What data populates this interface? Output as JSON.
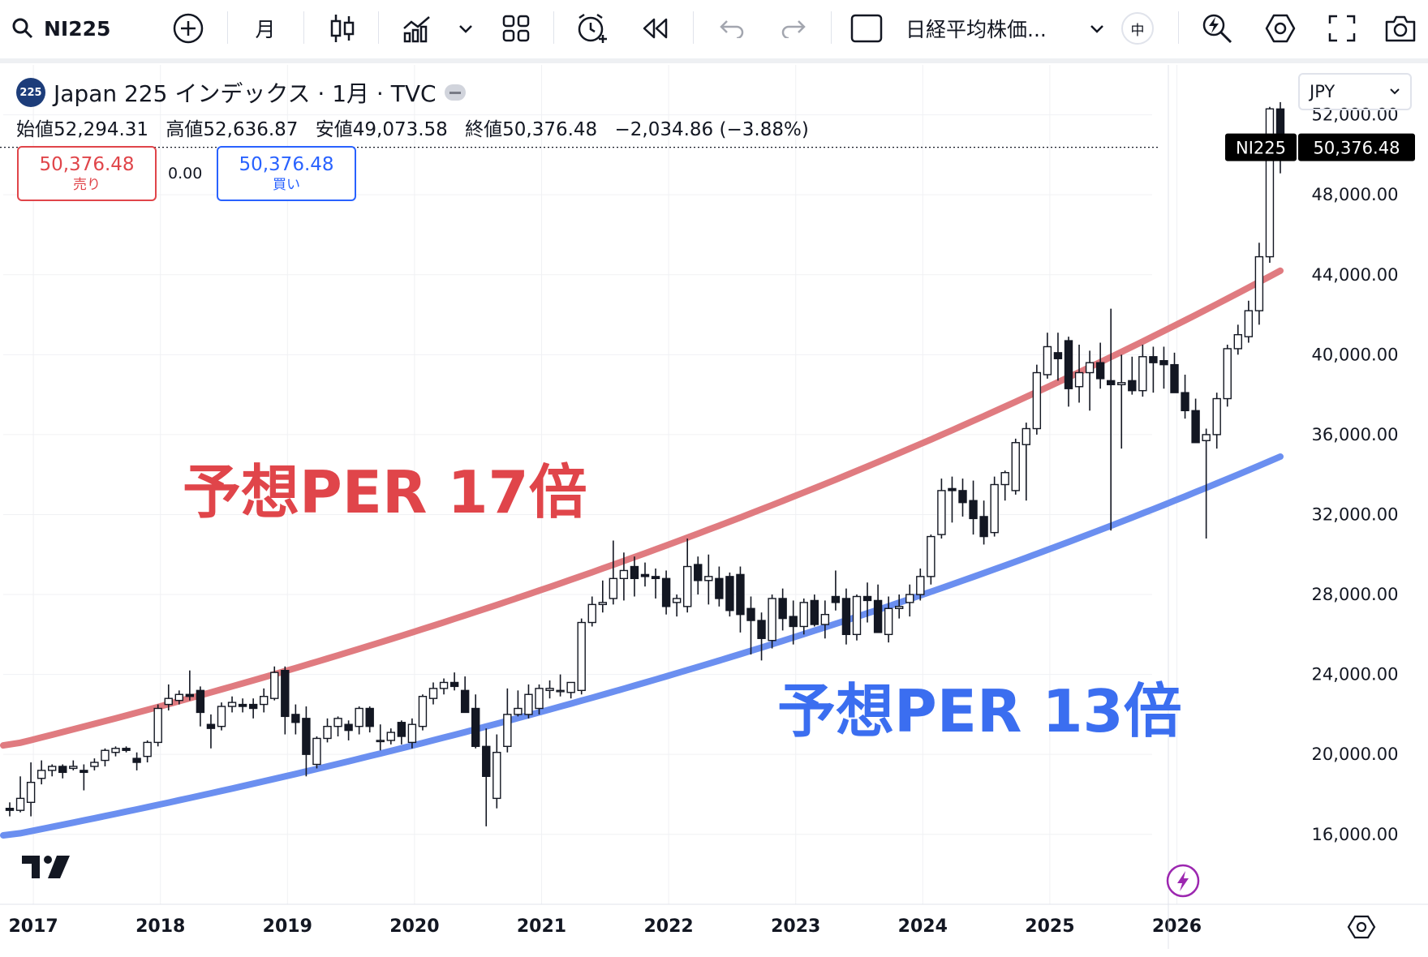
{
  "toolbar": {
    "symbol": "NI225",
    "interval": "月",
    "template": "日経平均株価...",
    "lang_badge": "中"
  },
  "legend": {
    "symbol_badge": "225",
    "title": "Japan 225 インデックス · 1月 · TVC",
    "open_label": "始値",
    "open": "52,294.31",
    "high_label": "高値",
    "high": "52,636.87",
    "low_label": "安値",
    "low": "49,073.58",
    "close_label": "終値",
    "close": "50,376.48",
    "change": "−2,034.86 (−3.88%)"
  },
  "trade": {
    "sell_price": "50,376.48",
    "sell_label": "売り",
    "spread": "0.00",
    "buy_price": "50,376.48",
    "buy_label": "買い"
  },
  "currency": "JPY",
  "colors": {
    "red_band": "#e07b80",
    "blue_band": "#6b8ff0",
    "red_text": "#e0454a",
    "blue_text": "#3b6ef0"
  },
  "chart_data": {
    "type": "candlestick",
    "interval": "monthly",
    "y_ticks": [
      16000,
      20000,
      24000,
      28000,
      32000,
      36000,
      40000,
      44000,
      48000,
      52000
    ],
    "ylim": [
      12500,
      54500
    ],
    "x_ticks": [
      "2017",
      "2018",
      "2019",
      "2020",
      "2021",
      "2022",
      "2023",
      "2024",
      "2025",
      "2026"
    ],
    "x_start": "2016-11",
    "last_price": 50376.48,
    "last_price_label": "50,376.48",
    "last_price_tag": "NI225",
    "annotations": [
      {
        "text": "予想PER 17倍",
        "color": "#e0454a"
      },
      {
        "text": "予想PER 13倍",
        "color": "#3b6ef0"
      }
    ],
    "bands": [
      {
        "name": "予想PER 17倍",
        "color": "#e07b80",
        "start": 20450,
        "end": 44200
      },
      {
        "name": "予想PER 13倍",
        "color": "#6b8ff0",
        "start": 15950,
        "end": 34900
      }
    ],
    "ohlc": [
      [
        "2016-11",
        17300,
        17600,
        16900,
        17200
      ],
      [
        "2016-12",
        17200,
        18900,
        17100,
        17800
      ],
      [
        "2017-01",
        17600,
        19600,
        16900,
        18600
      ],
      [
        "2017-02",
        18800,
        19700,
        18500,
        19200
      ],
      [
        "2017-03",
        19200,
        19500,
        18900,
        19400
      ],
      [
        "2017-04",
        19400,
        19500,
        18800,
        19100
      ],
      [
        "2017-05",
        19300,
        19700,
        19200,
        19400
      ],
      [
        "2017-06",
        19200,
        19500,
        18200,
        19100
      ],
      [
        "2017-07",
        19400,
        19800,
        19200,
        19600
      ],
      [
        "2017-08",
        19700,
        20300,
        19400,
        20200
      ],
      [
        "2017-09",
        20100,
        20400,
        19900,
        20300
      ],
      [
        "2017-10",
        20300,
        20400,
        20100,
        20200
      ],
      [
        "2017-11",
        19800,
        20100,
        19200,
        19600
      ],
      [
        "2017-12",
        19900,
        20700,
        19600,
        20600
      ],
      [
        "2018-01",
        20600,
        22500,
        20400,
        22300
      ],
      [
        "2018-02",
        22500,
        23500,
        22200,
        22800
      ],
      [
        "2018-03",
        22700,
        23200,
        22500,
        23000
      ],
      [
        "2018-04",
        23000,
        24200,
        22700,
        22900
      ],
      [
        "2018-05",
        23200,
        23400,
        21400,
        22100
      ],
      [
        "2018-06",
        21500,
        22000,
        20300,
        21300
      ],
      [
        "2018-07",
        21400,
        22600,
        21200,
        22400
      ],
      [
        "2018-08",
        22400,
        22900,
        22100,
        22600
      ],
      [
        "2018-09",
        22500,
        22800,
        22100,
        22400
      ],
      [
        "2018-10",
        22500,
        22800,
        21800,
        22300
      ],
      [
        "2018-11",
        22500,
        23300,
        22100,
        22900
      ],
      [
        "2018-12",
        22800,
        24400,
        22700,
        24100
      ],
      [
        "2019-01",
        24200,
        24400,
        21000,
        21900
      ],
      [
        "2019-02",
        22000,
        22500,
        21000,
        21600
      ],
      [
        "2019-03",
        21800,
        22400,
        18900,
        20000
      ],
      [
        "2019-04",
        19500,
        20900,
        19300,
        20800
      ],
      [
        "2019-05",
        20800,
        21800,
        20600,
        21400
      ],
      [
        "2019-06",
        21400,
        21900,
        20900,
        21800
      ],
      [
        "2019-07",
        21500,
        21700,
        20700,
        21200
      ],
      [
        "2019-08",
        21400,
        22400,
        21000,
        22300
      ],
      [
        "2019-09",
        22300,
        22400,
        21100,
        21400
      ],
      [
        "2019-10",
        20700,
        21500,
        20200,
        20700
      ],
      [
        "2019-11",
        20700,
        21300,
        20500,
        21100
      ],
      [
        "2019-12",
        21600,
        21700,
        20500,
        20900
      ],
      [
        "2020-01",
        20600,
        21800,
        20300,
        21500
      ],
      [
        "2020-02",
        21400,
        23000,
        21200,
        22900
      ],
      [
        "2020-03",
        22800,
        23600,
        22500,
        23300
      ],
      [
        "2020-04",
        23300,
        23800,
        23000,
        23600
      ],
      [
        "2020-05",
        23600,
        24100,
        23200,
        23400
      ],
      [
        "2020-06",
        23200,
        23900,
        22200,
        22100
      ],
      [
        "2020-07",
        22300,
        23000,
        20300,
        20400
      ],
      [
        "2020-08",
        20400,
        21300,
        16400,
        18900
      ],
      [
        "2020-09",
        17800,
        21000,
        17300,
        20100
      ],
      [
        "2020-10",
        20400,
        23300,
        20100,
        22000
      ],
      [
        "2020-11",
        22000,
        23200,
        21900,
        22300
      ],
      [
        "2020-12",
        22000,
        23500,
        21800,
        23000
      ],
      [
        "2021-01",
        22300,
        23500,
        22000,
        23300
      ],
      [
        "2021-02",
        23200,
        23700,
        22800,
        23300
      ],
      [
        "2021-03",
        23200,
        24000,
        22900,
        23200
      ],
      [
        "2021-04",
        23100,
        23600,
        22800,
        23600
      ],
      [
        "2021-05",
        23200,
        26800,
        23000,
        26600
      ],
      [
        "2021-06",
        26600,
        27900,
        26400,
        27500
      ],
      [
        "2021-07",
        27500,
        28700,
        27100,
        27600
      ],
      [
        "2021-08",
        27800,
        30700,
        27500,
        28800
      ],
      [
        "2021-09",
        28800,
        30100,
        27700,
        29200
      ],
      [
        "2021-10",
        29400,
        29900,
        27900,
        28800
      ],
      [
        "2021-11",
        29000,
        29600,
        28400,
        28900
      ],
      [
        "2021-12",
        28900,
        29300,
        27800,
        28800
      ],
      [
        "2022-01",
        28800,
        29200,
        27000,
        27400
      ],
      [
        "2022-02",
        27600,
        28000,
        26900,
        27800
      ],
      [
        "2022-03",
        27400,
        30800,
        27100,
        29400
      ],
      [
        "2022-04",
        29500,
        29900,
        28000,
        28700
      ],
      [
        "2022-05",
        28700,
        30000,
        27500,
        28900
      ],
      [
        "2022-06",
        28800,
        29400,
        27400,
        27800
      ],
      [
        "2022-07",
        28900,
        29100,
        26900,
        27200
      ],
      [
        "2022-08",
        29000,
        29400,
        26100,
        27000
      ],
      [
        "2022-09",
        27300,
        27900,
        25000,
        26700
      ],
      [
        "2022-10",
        26700,
        27100,
        24700,
        25800
      ],
      [
        "2022-11",
        25700,
        28000,
        25300,
        27800
      ],
      [
        "2022-12",
        27800,
        28300,
        26200,
        26800
      ],
      [
        "2023-01",
        26900,
        27700,
        25500,
        26400
      ],
      [
        "2023-02",
        26400,
        27800,
        26000,
        27600
      ],
      [
        "2023-03",
        27700,
        28000,
        26400,
        26500
      ],
      [
        "2023-04",
        26500,
        27700,
        25800,
        27000
      ],
      [
        "2023-05",
        27900,
        29200,
        27200,
        27600
      ],
      [
        "2023-06",
        27800,
        28300,
        25500,
        26000
      ],
      [
        "2023-07",
        26000,
        28000,
        25700,
        27900
      ],
      [
        "2023-08",
        27900,
        28600,
        26600,
        27700
      ],
      [
        "2023-09",
        27700,
        28500,
        26200,
        26100
      ],
      [
        "2023-10",
        26000,
        27900,
        25600,
        27300
      ],
      [
        "2023-11",
        27300,
        28000,
        26800,
        27400
      ],
      [
        "2023-12",
        27600,
        28500,
        26900,
        28000
      ],
      [
        "2024-01",
        28000,
        29300,
        27700,
        28900
      ],
      [
        "2024-02",
        28900,
        31000,
        28500,
        30900
      ],
      [
        "2024-03",
        31000,
        33800,
        30800,
        33200
      ],
      [
        "2024-04",
        33300,
        33900,
        31600,
        33200
      ],
      [
        "2024-05",
        33200,
        33800,
        31900,
        32600
      ],
      [
        "2024-06",
        32700,
        33700,
        31000,
        31800
      ],
      [
        "2024-07",
        31900,
        32700,
        30500,
        30900
      ],
      [
        "2024-08",
        31100,
        33900,
        30900,
        33500
      ],
      [
        "2024-09",
        33500,
        34200,
        32700,
        34100
      ],
      [
        "2024-10",
        33200,
        35800,
        33000,
        35600
      ],
      [
        "2024-11",
        35500,
        36600,
        32700,
        36300
      ],
      [
        "2024-12",
        36300,
        39500,
        36000,
        39100
      ],
      [
        "2025-01",
        39000,
        41100,
        38800,
        40400
      ],
      [
        "2025-02",
        40100,
        41100,
        38700,
        39800
      ],
      [
        "2025-03",
        40700,
        40900,
        37400,
        38300
      ],
      [
        "2025-04",
        38400,
        40500,
        37600,
        39100
      ],
      [
        "2025-05",
        39100,
        40200,
        37200,
        39600
      ],
      [
        "2025-06",
        39600,
        40600,
        38300,
        38800
      ],
      [
        "2025-07",
        38700,
        42300,
        31200,
        38500
      ],
      [
        "2025-08",
        38500,
        40000,
        35300,
        38600
      ],
      [
        "2025-09",
        38700,
        39900,
        38000,
        38200
      ],
      [
        "2025-10",
        38200,
        40500,
        37900,
        39900
      ],
      [
        "2025-11",
        39900,
        40400,
        38100,
        39600
      ],
      [
        "2025-12",
        39700,
        40400,
        38300,
        39500
      ],
      [
        "2026-01",
        39500,
        40100,
        38500,
        38100
      ],
      [
        "2026-02",
        38100,
        39000,
        36800,
        37200
      ],
      [
        "2026-03",
        37200,
        37800,
        35600,
        35600
      ],
      [
        "2026-04",
        35700,
        36300,
        30800,
        36000
      ],
      [
        "2026-05",
        36000,
        38100,
        35300,
        37800
      ],
      [
        "2026-06",
        37800,
        40500,
        37400,
        40300
      ],
      [
        "2026-07",
        40300,
        41500,
        40000,
        41000
      ],
      [
        "2026-08",
        40900,
        42700,
        40600,
        42200
      ],
      [
        "2026-09",
        42200,
        45600,
        41500,
        44900
      ],
      [
        "2026-10",
        44900,
        52400,
        44600,
        52300
      ],
      [
        "2026-11",
        52294.31,
        52636.87,
        49073.58,
        50376.48
      ]
    ]
  }
}
